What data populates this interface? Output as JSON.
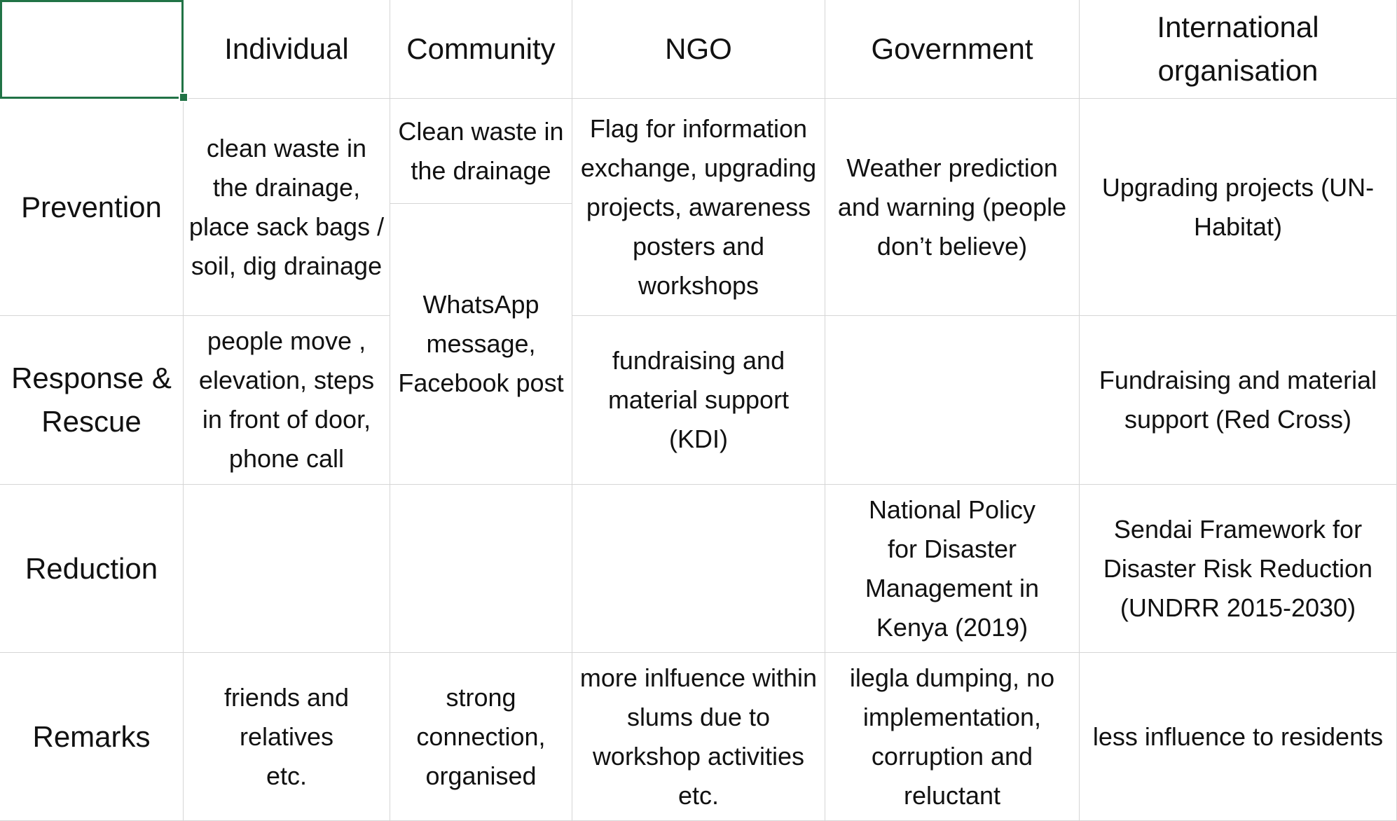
{
  "headers": {
    "individual": "Individual",
    "community": "Community",
    "ngo": "NGO",
    "government": "Government",
    "international": "International organisation"
  },
  "rows": {
    "prevention": {
      "label": "Prevention",
      "individual": "clean waste in the drainage, place sack bags / soil, dig drainage",
      "community": "Clean waste in the drainage",
      "ngo": "Flag for information exchange, upgrading projects, awareness posters and workshops",
      "government": "Weather prediction and warning (people don’t believe)",
      "international": "Upgrading projects (UN-Habitat)"
    },
    "community_shared": "WhatsApp message, Facebook post",
    "response": {
      "label": "Response & Rescue",
      "individual": "people move , elevation, steps in front of door, phone call",
      "ngo": "fundraising and material support (KDI)",
      "government": "",
      "international": "Fundraising and material support (Red Cross)"
    },
    "reduction": {
      "label": "Reduction",
      "individual": "",
      "community": "",
      "ngo": "",
      "government": "National Policy for Disaster Management in Kenya (2019)",
      "international": "Sendai Framework for Disaster Risk Reduction (UNDRR 2015-2030)"
    },
    "remarks": {
      "label": "Remarks",
      "individual": "friends and relatives etc.",
      "community": "strong connection, organised",
      "ngo": "more inlfuence within slums due to workshop activities etc.",
      "government": "ilegla dumping, no implementation, corruption and reluctant",
      "international": "less influence to residents"
    }
  },
  "colors": {
    "gridline": "#d6d6d6",
    "selection": "#217346",
    "text": "#111111"
  }
}
